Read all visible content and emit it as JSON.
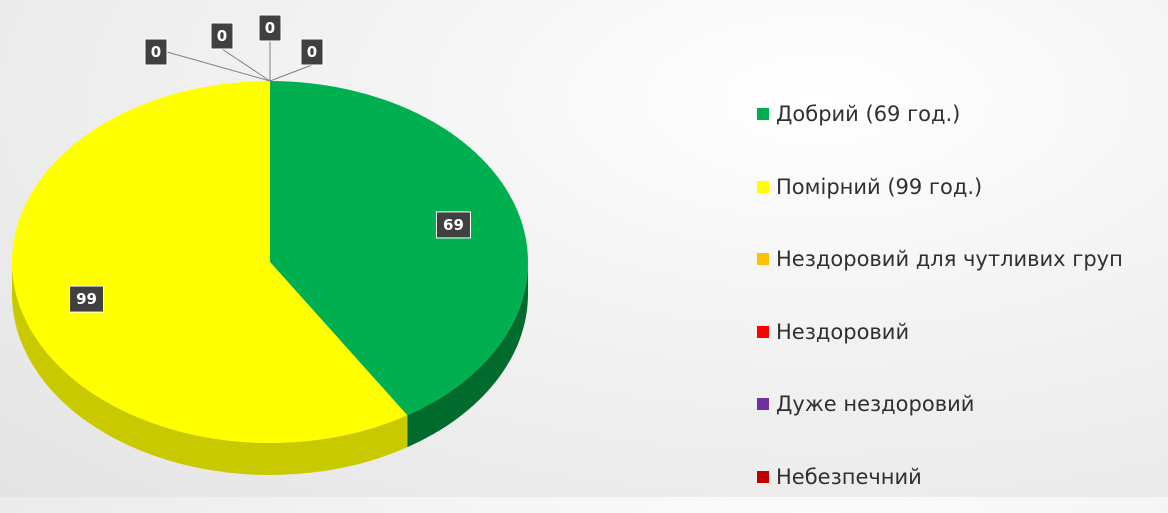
{
  "chart_data": {
    "type": "pie",
    "style": "3d",
    "start_angle_deg": 0,
    "legend_position": "right",
    "title": "",
    "slices": [
      {
        "label": "Добрий (69 год.)",
        "value": 69,
        "color": "#00b050",
        "side_color": "#006b2c"
      },
      {
        "label": "Помірний (99 год.)",
        "value": 99,
        "color": "#ffff00",
        "side_color": "#c9c900"
      },
      {
        "label": "Нездоровий для чутливих груп",
        "value": 0,
        "color": "#ffc000",
        "side_color": "#b88a00"
      },
      {
        "label": "Нездоровий",
        "value": 0,
        "color": "#ff0000",
        "side_color": "#b00000"
      },
      {
        "label": "Дуже нездоровий",
        "value": 0,
        "color": "#7030a0",
        "side_color": "#4a1f6b"
      },
      {
        "label": "Небезпечний",
        "value": 0,
        "color": "#c00000",
        "side_color": "#800000"
      }
    ]
  }
}
